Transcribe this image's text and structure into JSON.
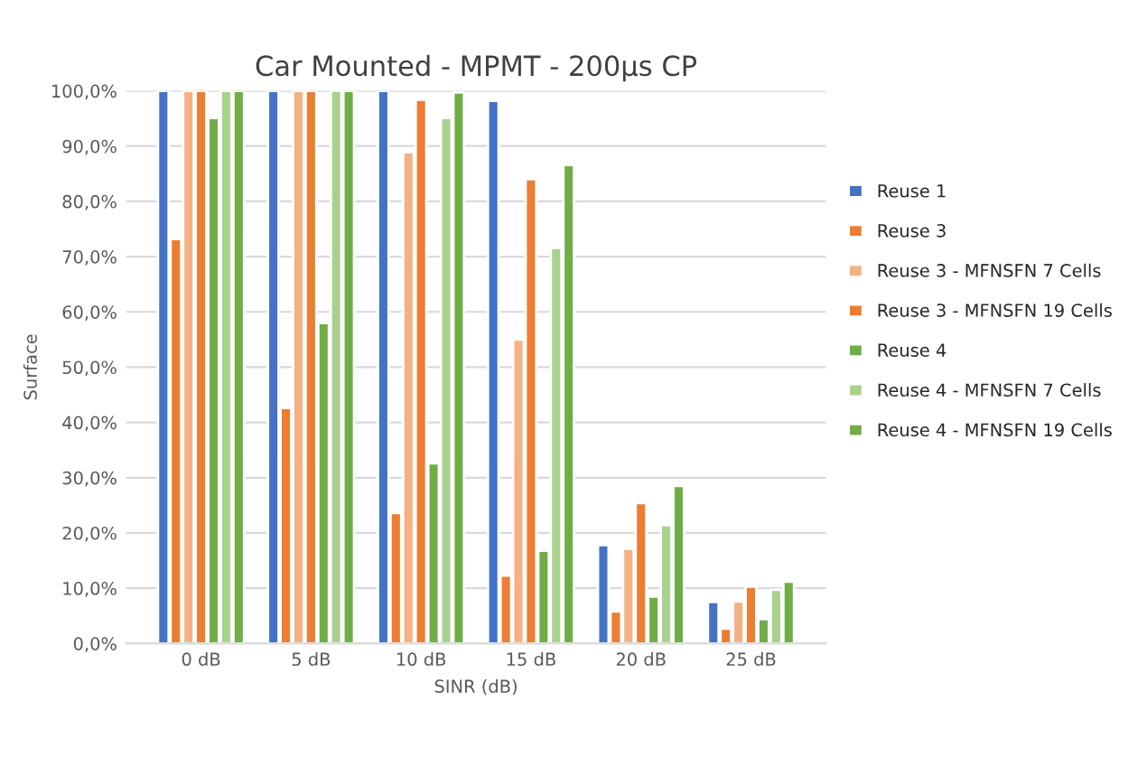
{
  "chart_data": {
    "type": "bar",
    "title": "Car Mounted - MPMT - 200µs CP",
    "xlabel": "SINR (dB)",
    "ylabel": "Surface",
    "categories": [
      "0 dB",
      "5 dB",
      "10 dB",
      "15 dB",
      "20 dB",
      "25 dB"
    ],
    "series": [
      {
        "name": "Reuse 1",
        "color": "#4472c4",
        "values": [
          100,
          100,
          100,
          98.2,
          17.8,
          7.5
        ]
      },
      {
        "name": "Reuse 3",
        "color": "#ed7d31",
        "values": [
          73.2,
          42.6,
          23.6,
          12.3,
          5.8,
          2.7
        ]
      },
      {
        "name": "Reuse 3 - MFNSFN 7 Cells",
        "color": "#f4b183",
        "values": [
          100,
          100,
          88.9,
          55,
          17.1,
          7.6
        ]
      },
      {
        "name": "Reuse 3 - MFNSFN 19 Cells",
        "color": "#ed7d31",
        "values": [
          100,
          100,
          98.4,
          84,
          25.4,
          10.3
        ]
      },
      {
        "name": "Reuse 4",
        "color": "#70ad47",
        "values": [
          95.1,
          58,
          32.6,
          16.8,
          8.5,
          4.4
        ]
      },
      {
        "name": "Reuse 4 - MFNSFN 7 Cells",
        "color": "#a9d18e",
        "values": [
          100,
          100,
          95.1,
          71.6,
          21.4,
          9.7
        ]
      },
      {
        "name": "Reuse 4 - MFNSFN 19 Cells",
        "color": "#70ad47",
        "values": [
          100,
          100,
          99.7,
          86.6,
          28.5,
          11.2
        ]
      }
    ],
    "ylim": [
      0,
      100
    ],
    "yticks": [
      {
        "value": 0,
        "label": "0,0%"
      },
      {
        "value": 10,
        "label": "10,0%"
      },
      {
        "value": 20,
        "label": "20,0%"
      },
      {
        "value": 30,
        "label": "30,0%"
      },
      {
        "value": 40,
        "label": "40,0%"
      },
      {
        "value": 50,
        "label": "50,0%"
      },
      {
        "value": 60,
        "label": "60,0%"
      },
      {
        "value": 70,
        "label": "70,0%"
      },
      {
        "value": 80,
        "label": "80,0%"
      },
      {
        "value": 90,
        "label": "90,0%"
      },
      {
        "value": 100,
        "label": "100,0%"
      }
    ],
    "grid": "y",
    "legend": "right"
  }
}
